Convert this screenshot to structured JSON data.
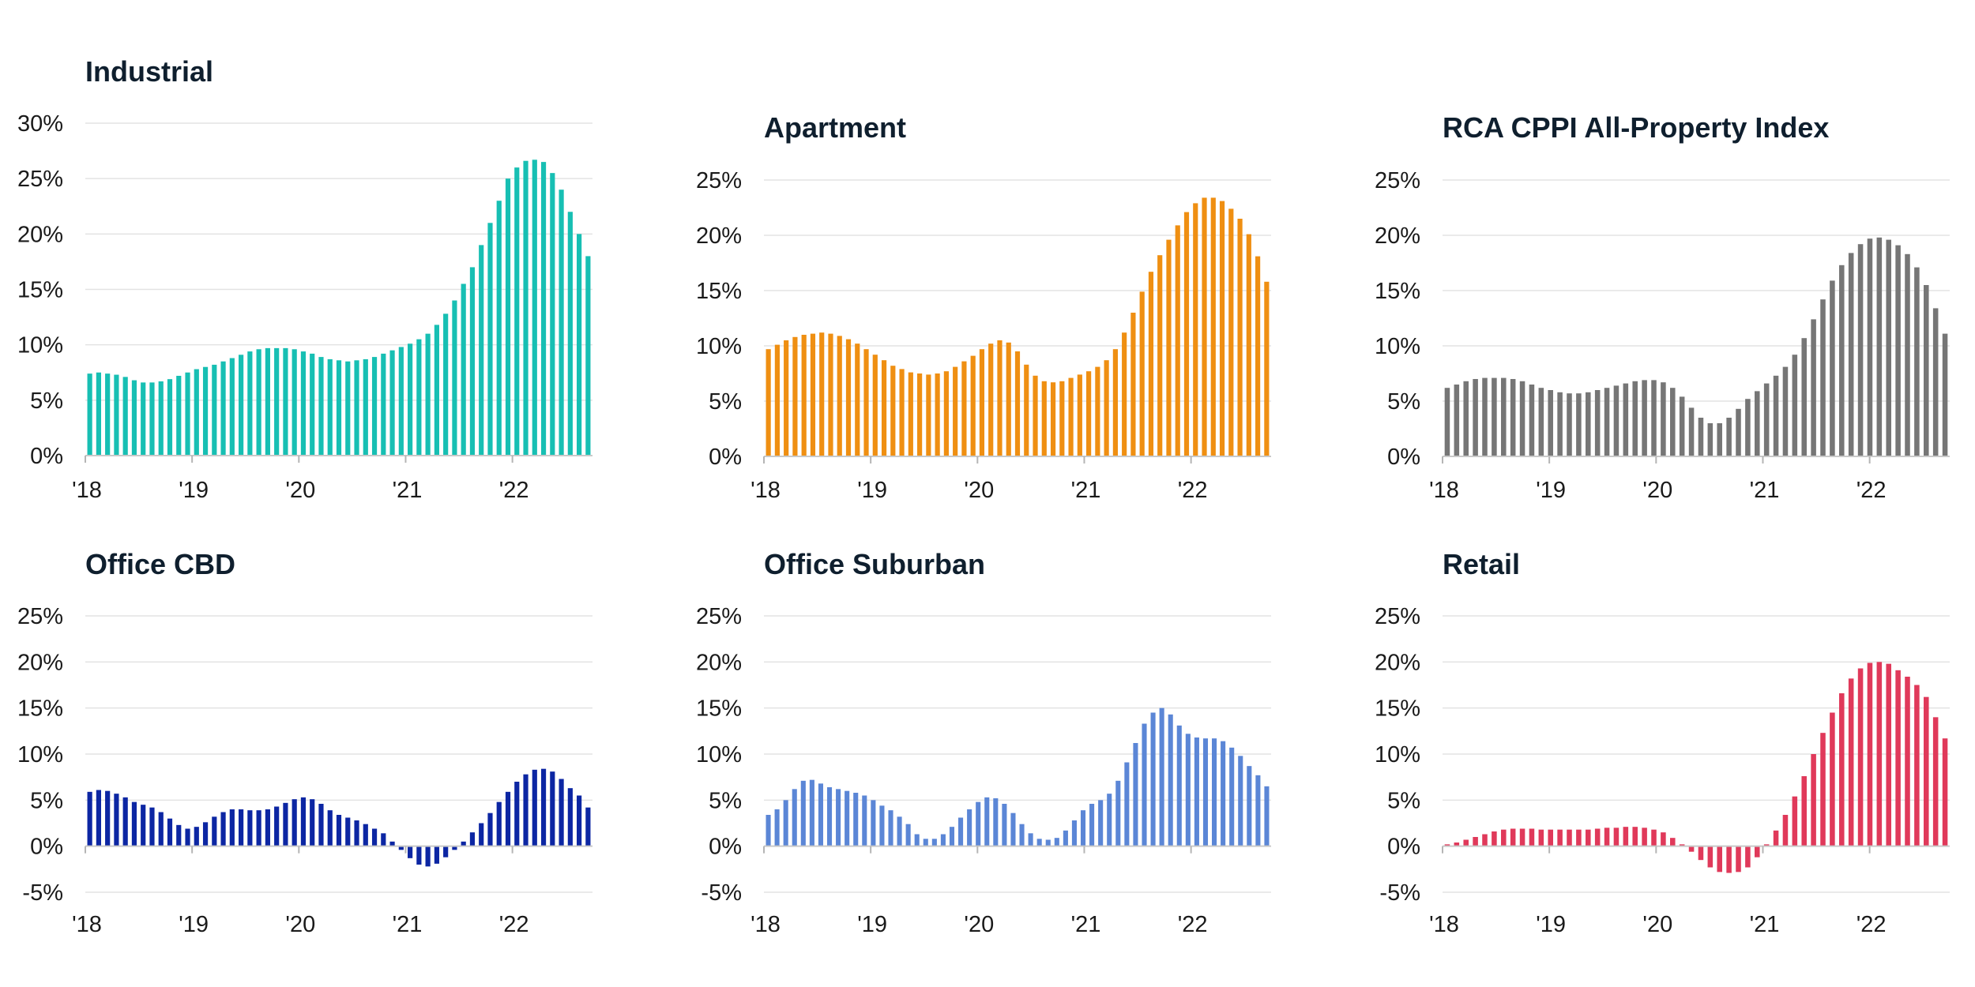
{
  "chart_data": [
    {
      "type": "bar",
      "title": "Industrial",
      "color": "#17bfb3",
      "x_tick_labels": [
        "'18",
        "'19",
        "'20",
        "'21",
        "'22"
      ],
      "y_tick_labels": [
        "0%",
        "5%",
        "10%",
        "15%",
        "20%",
        "25%",
        "30%"
      ],
      "ylim": [
        0,
        30
      ],
      "grid": true,
      "values": [
        7.4,
        7.5,
        7.4,
        7.3,
        7.1,
        6.8,
        6.6,
        6.6,
        6.7,
        6.9,
        7.2,
        7.5,
        7.8,
        8.0,
        8.2,
        8.5,
        8.8,
        9.1,
        9.4,
        9.6,
        9.7,
        9.7,
        9.7,
        9.6,
        9.4,
        9.2,
        8.9,
        8.7,
        8.6,
        8.5,
        8.6,
        8.7,
        8.9,
        9.2,
        9.5,
        9.8,
        10.1,
        10.5,
        11.0,
        11.8,
        12.8,
        14.0,
        15.5,
        17.0,
        19.0,
        21.0,
        23.0,
        25.0,
        26.0,
        26.6,
        26.7,
        26.5,
        25.5,
        24.0,
        22.0,
        20.0,
        18.0
      ]
    },
    {
      "type": "bar",
      "title": "Apartment",
      "color": "#ef8f12",
      "x_tick_labels": [
        "'18",
        "'19",
        "'20",
        "'21",
        "'22"
      ],
      "y_tick_labels": [
        "0%",
        "5%",
        "10%",
        "15%",
        "20%",
        "25%"
      ],
      "ylim": [
        0,
        25
      ],
      "grid": true,
      "values": [
        9.7,
        10.1,
        10.5,
        10.8,
        11.0,
        11.1,
        11.2,
        11.1,
        10.9,
        10.6,
        10.2,
        9.7,
        9.2,
        8.7,
        8.2,
        7.9,
        7.6,
        7.5,
        7.4,
        7.5,
        7.7,
        8.1,
        8.6,
        9.1,
        9.7,
        10.2,
        10.5,
        10.3,
        9.5,
        8.3,
        7.3,
        6.8,
        6.7,
        6.8,
        7.1,
        7.4,
        7.7,
        8.1,
        8.7,
        9.7,
        11.2,
        13.0,
        14.9,
        16.7,
        18.2,
        19.6,
        20.9,
        22.1,
        22.9,
        23.4,
        23.4,
        23.1,
        22.4,
        21.5,
        20.1,
        18.1,
        15.8
      ]
    },
    {
      "type": "bar",
      "title": "RCA CPPI All-Property Index",
      "color": "#767676",
      "x_tick_labels": [
        "'18",
        "'19",
        "'20",
        "'21",
        "'22"
      ],
      "y_tick_labels": [
        "0%",
        "5%",
        "10%",
        "15%",
        "20%",
        "25%"
      ],
      "ylim": [
        0,
        25
      ],
      "grid": true,
      "values": [
        6.2,
        6.5,
        6.8,
        7.0,
        7.1,
        7.1,
        7.1,
        7.0,
        6.8,
        6.5,
        6.2,
        6.0,
        5.8,
        5.7,
        5.7,
        5.8,
        6.0,
        6.2,
        6.4,
        6.6,
        6.8,
        6.9,
        6.9,
        6.7,
        6.2,
        5.4,
        4.4,
        3.5,
        3.0,
        3.0,
        3.5,
        4.3,
        5.2,
        5.9,
        6.6,
        7.3,
        8.1,
        9.2,
        10.7,
        12.4,
        14.2,
        15.9,
        17.3,
        18.4,
        19.2,
        19.7,
        19.8,
        19.6,
        19.1,
        18.3,
        17.1,
        15.5,
        13.4,
        11.1
      ]
    },
    {
      "type": "bar",
      "title": "Office CBD",
      "color": "#0c26a3",
      "x_tick_labels": [
        "'18",
        "'19",
        "'20",
        "'21",
        "'22"
      ],
      "y_tick_labels": [
        "-5%",
        "0%",
        "5%",
        "10%",
        "15%",
        "20%",
        "25%"
      ],
      "ylim": [
        -5,
        25
      ],
      "grid": true,
      "values": [
        5.9,
        6.1,
        6.0,
        5.7,
        5.3,
        4.8,
        4.5,
        4.2,
        3.7,
        3.0,
        2.3,
        1.9,
        2.1,
        2.6,
        3.2,
        3.7,
        4.0,
        4.0,
        3.9,
        3.9,
        4.0,
        4.3,
        4.7,
        5.1,
        5.3,
        5.1,
        4.6,
        3.9,
        3.4,
        3.1,
        2.8,
        2.4,
        1.9,
        1.4,
        0.5,
        -0.4,
        -1.3,
        -2.0,
        -2.2,
        -1.9,
        -1.2,
        -0.4,
        0.5,
        1.5,
        2.5,
        3.6,
        4.8,
        5.9,
        7.0,
        7.8,
        8.3,
        8.4,
        8.1,
        7.3,
        6.3,
        5.5,
        4.2
      ]
    },
    {
      "type": "bar",
      "title": "Office Suburban",
      "color": "#5b86d6",
      "x_tick_labels": [
        "'18",
        "'19",
        "'20",
        "'21",
        "'22"
      ],
      "y_tick_labels": [
        "-5%",
        "0%",
        "5%",
        "10%",
        "15%",
        "20%",
        "25%"
      ],
      "ylim": [
        -5,
        25
      ],
      "grid": true,
      "values": [
        3.4,
        4.0,
        5.0,
        6.2,
        7.1,
        7.2,
        6.8,
        6.4,
        6.2,
        6.0,
        5.8,
        5.5,
        5.0,
        4.4,
        3.9,
        3.2,
        2.4,
        1.3,
        0.8,
        0.8,
        1.3,
        2.1,
        3.1,
        4.0,
        4.8,
        5.3,
        5.2,
        4.6,
        3.6,
        2.4,
        1.4,
        0.8,
        0.7,
        0.9,
        1.7,
        2.8,
        3.9,
        4.6,
        5.0,
        5.7,
        7.1,
        9.1,
        11.2,
        13.3,
        14.5,
        15.0,
        14.3,
        13.1,
        12.2,
        11.8,
        11.7,
        11.7,
        11.4,
        10.7,
        9.8,
        8.7,
        7.7,
        6.5
      ]
    },
    {
      "type": "bar",
      "title": "Retail",
      "color": "#e0395a",
      "x_tick_labels": [
        "'18",
        "'19",
        "'20",
        "'21",
        "'22"
      ],
      "y_tick_labels": [
        "-5%",
        "0%",
        "5%",
        "10%",
        "15%",
        "20%",
        "25%"
      ],
      "ylim": [
        -5,
        25
      ],
      "grid": true,
      "values": [
        0.2,
        0.4,
        0.7,
        1.0,
        1.3,
        1.6,
        1.8,
        1.9,
        1.9,
        1.9,
        1.8,
        1.8,
        1.8,
        1.8,
        1.8,
        1.8,
        1.9,
        2.0,
        2.0,
        2.1,
        2.1,
        2.0,
        1.8,
        1.5,
        0.9,
        0.2,
        -0.6,
        -1.5,
        -2.3,
        -2.8,
        -2.9,
        -2.8,
        -2.3,
        -1.2,
        0.2,
        1.7,
        3.4,
        5.4,
        7.6,
        10.0,
        12.3,
        14.5,
        16.6,
        18.2,
        19.3,
        19.9,
        20.0,
        19.8,
        19.1,
        18.4,
        17.5,
        16.2,
        14.0,
        11.7
      ]
    }
  ]
}
